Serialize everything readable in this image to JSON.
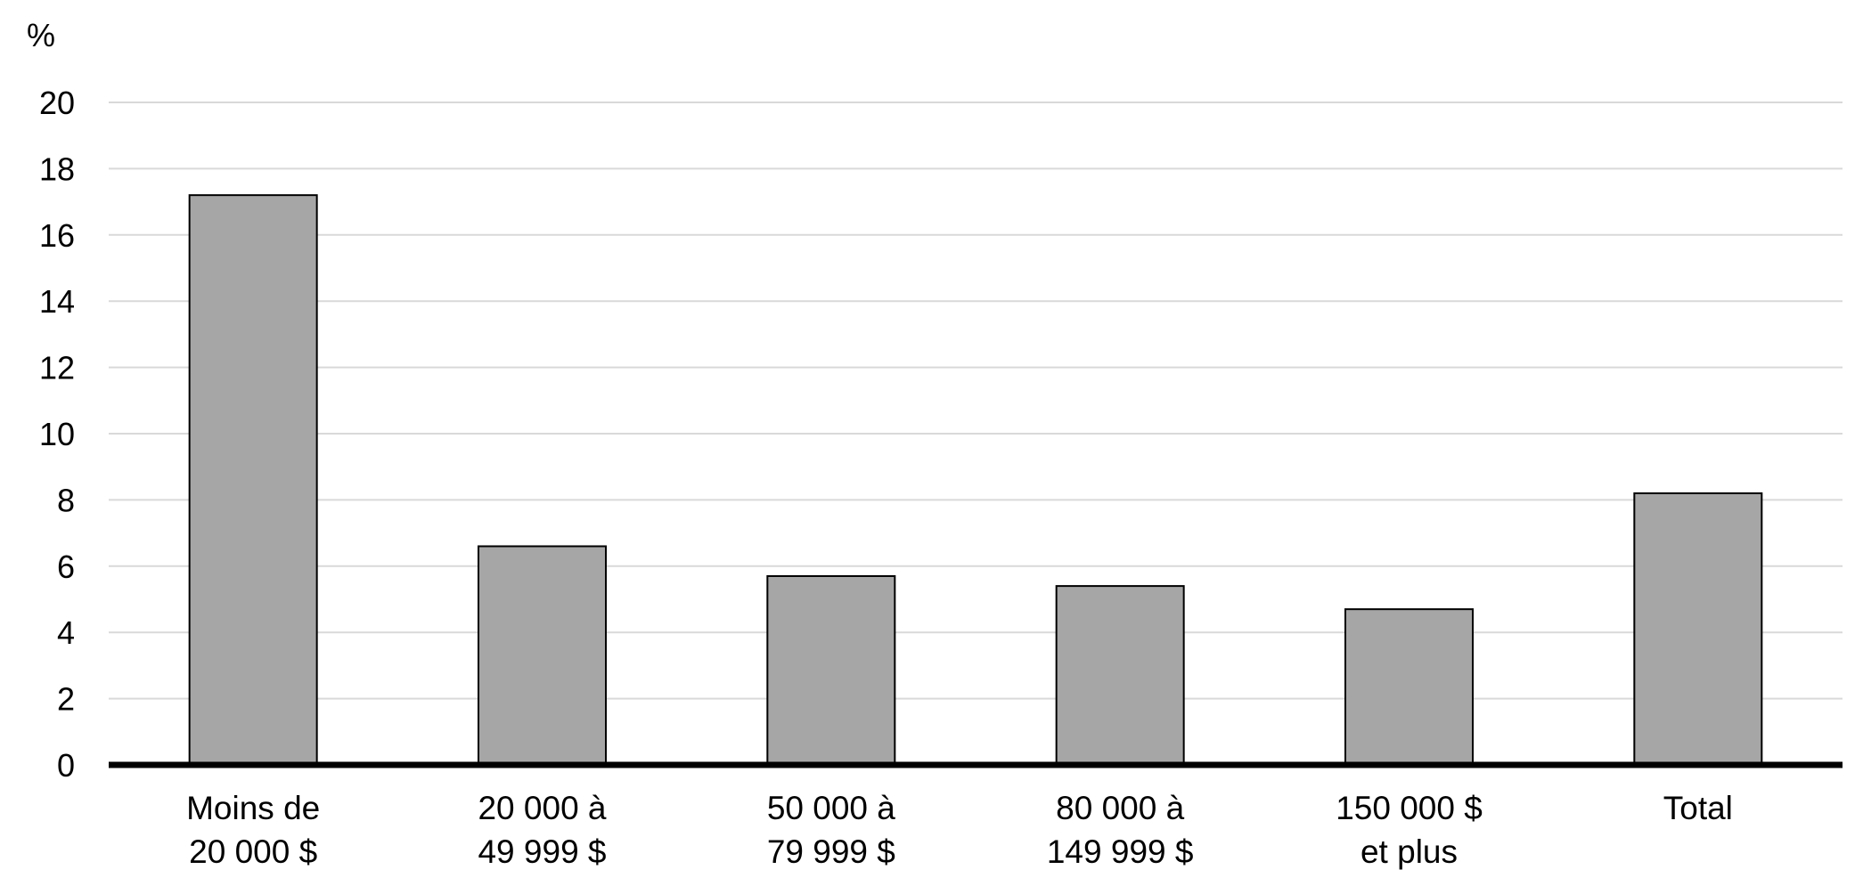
{
  "chart_data": {
    "type": "bar",
    "title": "",
    "xlabel": "",
    "ylabel": "%",
    "ylim": [
      0,
      20
    ],
    "y_ticks": [
      0,
      2,
      4,
      6,
      8,
      10,
      12,
      14,
      16,
      18,
      20
    ],
    "grid": true,
    "legend": "none",
    "categories": [
      [
        "Moins de",
        "20 000 $"
      ],
      [
        "20 000 à",
        "49 999 $"
      ],
      [
        "50 000 à",
        "79 999 $"
      ],
      [
        "80 000 à",
        "149 999 $"
      ],
      [
        "150 000 $",
        "et plus"
      ],
      [
        "Total"
      ]
    ],
    "values": [
      17.2,
      6.6,
      5.7,
      5.4,
      4.7,
      8.2
    ],
    "colors": {
      "bar_fill": "#a6a6a6",
      "bar_stroke": "#000000",
      "grid": "#d9d9d9",
      "axis": "#000000"
    }
  }
}
